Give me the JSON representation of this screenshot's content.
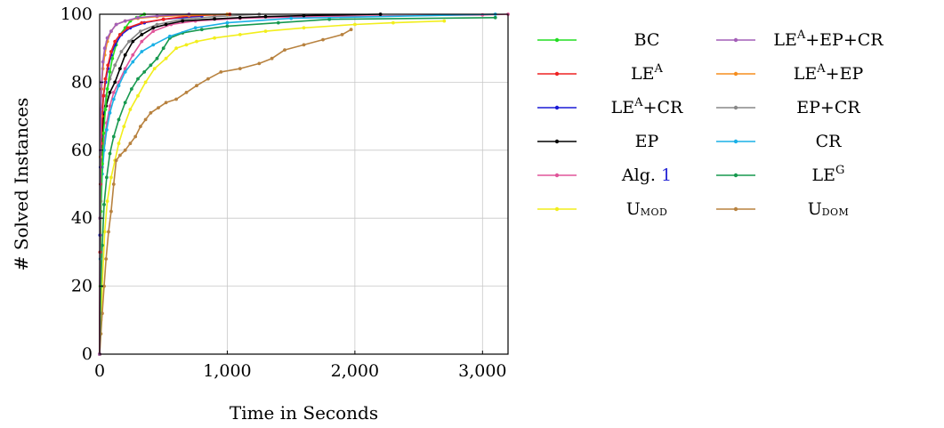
{
  "chart_data": {
    "type": "line",
    "xlabel": "Time in Seconds",
    "ylabel": "# Solved Instances",
    "xlim": [
      0,
      3200
    ],
    "ylim": [
      0,
      100
    ],
    "xticks": [
      0,
      1000,
      2000,
      3000
    ],
    "xtick_labels": [
      "0",
      "1,000",
      "2,000",
      "3,000"
    ],
    "yticks": [
      0,
      20,
      40,
      60,
      80,
      100
    ],
    "ytick_labels": [
      "0",
      "20",
      "40",
      "60",
      "80",
      "100"
    ],
    "grid": true,
    "legend_position": "right",
    "series": [
      {
        "name": "BC",
        "color": "#22dd22",
        "x": [
          0,
          5,
          10,
          20,
          30,
          45,
          60,
          80,
          100,
          130,
          160,
          200,
          240,
          290,
          350
        ],
        "y": [
          0,
          20,
          42,
          56,
          65,
          72,
          78,
          83,
          87,
          91,
          94,
          96,
          98,
          99,
          100
        ]
      },
      {
        "name": "LE^A",
        "color": "#ee2222",
        "x": [
          0,
          3,
          6,
          12,
          20,
          30,
          45,
          65,
          90,
          120,
          160,
          220,
          330,
          500,
          700,
          1020
        ],
        "y": [
          0,
          30,
          50,
          62,
          70,
          76,
          81,
          85,
          89,
          92,
          94,
          96,
          97.5,
          98.5,
          99.5,
          100
        ]
      },
      {
        "name": "LE^A+CR",
        "color": "#1a1ad6",
        "x": [
          0,
          3,
          6,
          12,
          20,
          30,
          45,
          65,
          90,
          120,
          170,
          240,
          350,
          500,
          800
        ],
        "y": [
          0,
          35,
          55,
          64,
          71,
          76,
          80,
          84,
          88,
          91,
          94,
          96,
          97.5,
          98.5,
          99.5
        ]
      },
      {
        "name": "EP",
        "color": "#000000",
        "x": [
          0,
          5,
          10,
          20,
          30,
          50,
          80,
          120,
          160,
          200,
          260,
          330,
          420,
          520,
          650,
          900,
          1100,
          1300,
          1600,
          2200
        ],
        "y": [
          0,
          40,
          55,
          64,
          70,
          73,
          77,
          80,
          84,
          88,
          92,
          94,
          96,
          97,
          98,
          98.6,
          99,
          99.3,
          99.6,
          100
        ]
      },
      {
        "name": "Alg. 1",
        "color": "#e0559a",
        "x": [
          0,
          5,
          10,
          20,
          35,
          55,
          80,
          110,
          150,
          200,
          260,
          330,
          420,
          560,
          750,
          1100,
          1600,
          3000,
          3200
        ],
        "y": [
          0,
          30,
          45,
          55,
          62,
          68,
          73,
          77,
          80,
          84,
          88,
          92,
          95,
          97,
          98,
          98.8,
          99.3,
          99.8,
          100
        ]
      },
      {
        "name": "U_MOD",
        "color": "#f2ee1c",
        "x": [
          0,
          10,
          20,
          40,
          60,
          90,
          120,
          150,
          190,
          240,
          300,
          360,
          430,
          520,
          600,
          680,
          760,
          900,
          1100,
          1300,
          1600,
          2000,
          2300,
          2700
        ],
        "y": [
          0,
          10,
          20,
          36,
          45,
          52,
          57,
          62,
          67,
          72,
          76,
          80,
          84,
          87,
          90,
          91,
          92,
          93,
          94,
          95,
          96,
          97,
          97.5,
          98
        ]
      },
      {
        "name": "LE^A+EP+CR",
        "color": "#a45fb8",
        "x": [
          0,
          3,
          6,
          10,
          15,
          25,
          40,
          60,
          90,
          130,
          200,
          300,
          450,
          700
        ],
        "y": [
          0,
          40,
          60,
          72,
          80,
          86,
          90,
          93,
          95,
          97,
          98,
          99,
          99.5,
          100
        ]
      },
      {
        "name": "LE^A+EP",
        "color": "#f58d1e",
        "x": [
          0,
          3,
          6,
          10,
          15,
          25,
          40,
          60,
          90,
          130,
          200,
          300,
          450,
          700,
          1000
        ],
        "y": [
          0,
          40,
          58,
          70,
          78,
          84,
          88,
          92,
          95,
          97,
          98,
          98.8,
          99.3,
          99.7,
          100
        ]
      },
      {
        "name": "EP+CR",
        "color": "#888888",
        "x": [
          0,
          5,
          10,
          20,
          30,
          50,
          80,
          120,
          170,
          230,
          320,
          450,
          650,
          900,
          1250
        ],
        "y": [
          0,
          35,
          52,
          63,
          70,
          76,
          81,
          85,
          89,
          92,
          95,
          97,
          98.5,
          99.3,
          100
        ]
      },
      {
        "name": "CR",
        "color": "#1ab0e6",
        "x": [
          0,
          5,
          10,
          20,
          35,
          55,
          80,
          110,
          150,
          200,
          260,
          330,
          420,
          550,
          750,
          1000,
          1500,
          3100
        ],
        "y": [
          0,
          28,
          42,
          53,
          60,
          66,
          71,
          75,
          79,
          83,
          86,
          89,
          91,
          93.5,
          96,
          97.5,
          98.8,
          100
        ]
      },
      {
        "name": "LE^G",
        "color": "#17994f",
        "x": [
          0,
          10,
          20,
          35,
          55,
          80,
          110,
          150,
          200,
          250,
          300,
          350,
          400,
          450,
          500,
          550,
          650,
          800,
          1000,
          1400,
          1800,
          3100
        ],
        "y": [
          0,
          20,
          32,
          44,
          52,
          59,
          64,
          69,
          74,
          78,
          81,
          83,
          85,
          87,
          90,
          93,
          94.5,
          95.5,
          96.5,
          97.5,
          98.5,
          99
        ]
      },
      {
        "name": "U_DOM",
        "color": "#b8823f",
        "x": [
          0,
          10,
          20,
          35,
          50,
          70,
          90,
          110,
          130,
          160,
          200,
          240,
          280,
          320,
          360,
          400,
          460,
          520,
          600,
          680,
          760,
          850,
          950,
          1100,
          1250,
          1350,
          1450,
          1600,
          1750,
          1900,
          1970
        ],
        "y": [
          0,
          6,
          12,
          20,
          28,
          36,
          42,
          50,
          57,
          58.5,
          60,
          62,
          64,
          67,
          69,
          71,
          72.5,
          74,
          75,
          77,
          79,
          81,
          83,
          84,
          85.5,
          87,
          89.5,
          91,
          92.5,
          94,
          95.5
        ]
      }
    ],
    "legend_labels": [
      {
        "main": "BC",
        "sup": "",
        "sc": "",
        "suffix": ""
      },
      {
        "main": "LE",
        "sup": "A",
        "sc": "",
        "suffix": ""
      },
      {
        "main": "LE",
        "sup": "A",
        "sc": "",
        "suffix": "+CR"
      },
      {
        "main": "EP",
        "sup": "",
        "sc": "",
        "suffix": ""
      },
      {
        "main": "Alg. ",
        "sup": "",
        "sc": "",
        "suffix": "",
        "link": "1"
      },
      {
        "main": "U",
        "sup": "",
        "sc": "MOD",
        "suffix": ""
      },
      {
        "main": "LE",
        "sup": "A",
        "sc": "",
        "suffix": "+EP+CR"
      },
      {
        "main": "LE",
        "sup": "A",
        "sc": "",
        "suffix": "+EP"
      },
      {
        "main": "EP+CR",
        "sup": "",
        "sc": "",
        "suffix": ""
      },
      {
        "main": "CR",
        "sup": "",
        "sc": "",
        "suffix": ""
      },
      {
        "main": "LE",
        "sup": "G",
        "sc": "",
        "suffix": ""
      },
      {
        "main": "U",
        "sup": "",
        "sc": "DOM",
        "suffix": ""
      }
    ]
  }
}
